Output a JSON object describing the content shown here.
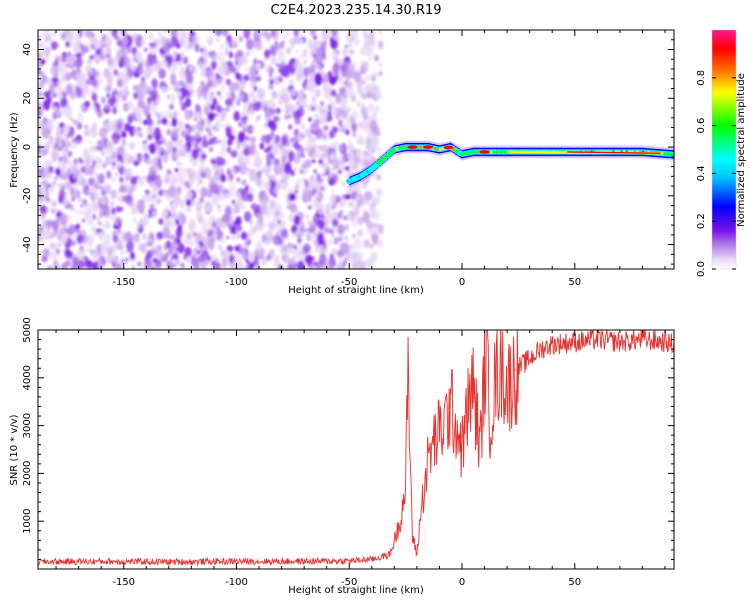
{
  "figure": {
    "title": "C2E4.2023.235.14.30.R19"
  },
  "chart_data": [
    {
      "type": "heatmap",
      "xlabel": "Height of straight line (km)",
      "ylabel": "Frequency (Hz)",
      "xlim": [
        -188,
        94
      ],
      "ylim": [
        -50,
        48
      ],
      "xticks": [
        -150,
        -100,
        -50,
        0,
        50
      ],
      "yticks": [
        -40,
        -20,
        0,
        20,
        40
      ],
      "grid": false,
      "noise_region": {
        "x_start": -188,
        "x_end": -40,
        "description": "scattered low-amplitude speckle"
      },
      "signal_track": {
        "x": [
          -50,
          -45,
          -40,
          -35,
          -30,
          -25,
          -20,
          -15,
          -10,
          -5,
          0,
          5,
          10,
          20,
          40,
          60,
          80,
          94
        ],
        "freq": [
          -14,
          -12,
          -9,
          -5,
          -1,
          0,
          0,
          0,
          -1,
          0,
          -3,
          -2,
          -2,
          -2,
          -2,
          -2,
          -2,
          -3
        ],
        "amplitude": [
          0.3,
          0.35,
          0.45,
          0.55,
          0.6,
          0.65,
          0.9,
          1.0,
          0.8,
          0.9,
          0.6,
          0.7,
          0.8,
          0.75,
          0.8,
          0.85,
          0.9,
          0.5
        ]
      },
      "colorbar": {
        "label": "Normalized spectral amplitude",
        "ticks": [
          0.0,
          0.2,
          0.4,
          0.6,
          0.8
        ],
        "range": [
          0,
          1
        ],
        "colormap": [
          "#ffffff",
          "#e7d7f5",
          "#b07ee6",
          "#7b14e8",
          "#0000ff",
          "#00ffff",
          "#00ff00",
          "#ffff00",
          "#ff8000",
          "#ff0000",
          "#ff1493"
        ]
      },
      "colors": {
        "noise": "#7b14e8"
      }
    },
    {
      "type": "line",
      "xlabel": "Height of straight line (km)",
      "ylabel": "SNR (10 * v/v)",
      "xlim": [
        -188,
        94
      ],
      "ylim": [
        0,
        5000
      ],
      "xticks": [
        -150,
        -100,
        -50,
        0,
        50
      ],
      "yticks": [
        1000,
        2000,
        3000,
        4000,
        5000
      ],
      "grid": false,
      "series": [
        {
          "color": "#e8302c",
          "x": [
            -188,
            -160,
            -130,
            -100,
            -70,
            -50,
            -40,
            -32,
            -28,
            -25,
            -24,
            -22,
            -20,
            -18,
            -15,
            -12,
            -8,
            -5,
            -3,
            0,
            3,
            5,
            8,
            10,
            11,
            12,
            15,
            18,
            20,
            25,
            30,
            35,
            40,
            50,
            60,
            70,
            80,
            90,
            94
          ],
          "y": [
            150,
            160,
            150,
            160,
            160,
            170,
            200,
            300,
            900,
            1700,
            4100,
            700,
            300,
            1300,
            2300,
            2700,
            3000,
            3400,
            3100,
            2500,
            3500,
            3800,
            2500,
            4100,
            5000,
            3000,
            4000,
            4200,
            3800,
            4200,
            4400,
            4600,
            4700,
            4750,
            4800,
            4750,
            4800,
            4750,
            4700
          ],
          "noise_amplitude": 150
        }
      ]
    }
  ]
}
